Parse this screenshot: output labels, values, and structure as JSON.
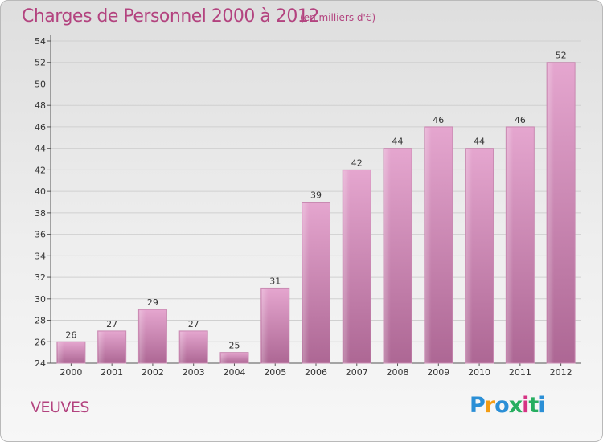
{
  "header": {
    "title": "Charges de Personnel 2000 à 2012",
    "unit_note": "(en milliers d'€)"
  },
  "footer": {
    "commune": "VEUVES",
    "logo_letters": [
      "P",
      "r",
      "o",
      "x",
      "i",
      "t",
      "i"
    ],
    "logo_colors": [
      "#2b8fd6",
      "#f39c12",
      "#2b8fd6",
      "#27ae60",
      "#d63384",
      "#27ae60",
      "#2b8fd6"
    ]
  },
  "colors": {
    "bar_top": "#e5a6cf",
    "bar_bottom": "#ad6794",
    "text_accent": "#b3437f",
    "grid": "#d0d0d0"
  },
  "chart_data": {
    "type": "bar",
    "title": "Charges de Personnel 2000 à 2012",
    "subtitle": "(en milliers d'€)",
    "categories": [
      "2000",
      "2001",
      "2002",
      "2003",
      "2004",
      "2005",
      "2006",
      "2007",
      "2008",
      "2009",
      "2010",
      "2011",
      "2012"
    ],
    "values": [
      26,
      27,
      29,
      27,
      25,
      31,
      39,
      42,
      44,
      46,
      44,
      46,
      52
    ],
    "ylim": [
      24,
      54
    ],
    "yticks": [
      24,
      26,
      28,
      30,
      32,
      34,
      36,
      38,
      40,
      42,
      44,
      46,
      48,
      50,
      52,
      54
    ],
    "xlabel": "",
    "ylabel": "",
    "grid": true
  }
}
